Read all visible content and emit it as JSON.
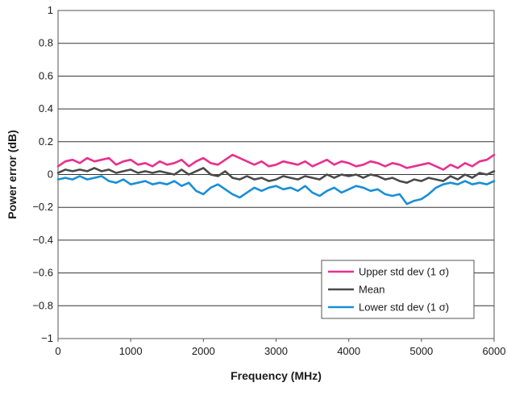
{
  "chart_data": {
    "type": "line",
    "xlabel": "Frequency (MHz)",
    "ylabel": "Power error (dB)",
    "xlim": [
      0,
      6000
    ],
    "ylim": [
      -1,
      1
    ],
    "x_ticks": [
      0,
      1000,
      2000,
      3000,
      4000,
      5000,
      6000
    ],
    "x_tick_labels": [
      "0",
      "1000",
      "2000",
      "3000",
      "4000",
      "5000",
      "6000"
    ],
    "y_ticks": [
      1,
      0.8,
      0.6,
      0.4,
      0.2,
      0,
      -0.2,
      -0.4,
      -0.6,
      -0.8,
      -1
    ],
    "y_tick_labels": [
      "1",
      "0.8",
      "0.6",
      "0.4",
      "0.2",
      "0",
      "−0.2",
      "−0.4",
      "−0.6",
      "−0.8",
      "−1"
    ],
    "grid": "horizontal",
    "legend_position": "bottom-right",
    "series": [
      {
        "name": "Upper std dev (1 σ)",
        "color": "#e8308f",
        "x": [
          0,
          100,
          200,
          300,
          400,
          500,
          600,
          700,
          800,
          900,
          1000,
          1100,
          1200,
          1300,
          1400,
          1500,
          1600,
          1700,
          1800,
          1900,
          2000,
          2100,
          2200,
          2300,
          2400,
          2500,
          2600,
          2700,
          2800,
          2900,
          3000,
          3100,
          3200,
          3300,
          3400,
          3500,
          3600,
          3700,
          3800,
          3900,
          4000,
          4100,
          4200,
          4300,
          4400,
          4500,
          4600,
          4700,
          4800,
          4900,
          5000,
          5100,
          5200,
          5300,
          5400,
          5500,
          5600,
          5700,
          5800,
          5900,
          6000
        ],
        "y": [
          0.05,
          0.08,
          0.09,
          0.07,
          0.1,
          0.08,
          0.09,
          0.1,
          0.06,
          0.08,
          0.09,
          0.06,
          0.07,
          0.05,
          0.08,
          0.06,
          0.07,
          0.09,
          0.05,
          0.08,
          0.1,
          0.07,
          0.06,
          0.09,
          0.12,
          0.1,
          0.08,
          0.06,
          0.08,
          0.05,
          0.06,
          0.08,
          0.07,
          0.06,
          0.08,
          0.05,
          0.07,
          0.09,
          0.06,
          0.08,
          0.07,
          0.05,
          0.06,
          0.08,
          0.07,
          0.05,
          0.07,
          0.06,
          0.04,
          0.05,
          0.06,
          0.07,
          0.05,
          0.03,
          0.06,
          0.04,
          0.07,
          0.05,
          0.08,
          0.09,
          0.12
        ]
      },
      {
        "name": "Mean",
        "color": "#4a4a4a",
        "x": [
          0,
          100,
          200,
          300,
          400,
          500,
          600,
          700,
          800,
          900,
          1000,
          1100,
          1200,
          1300,
          1400,
          1500,
          1600,
          1700,
          1800,
          1900,
          2000,
          2100,
          2200,
          2300,
          2400,
          2500,
          2600,
          2700,
          2800,
          2900,
          3000,
          3100,
          3200,
          3300,
          3400,
          3500,
          3600,
          3700,
          3800,
          3900,
          4000,
          4100,
          4200,
          4300,
          4400,
          4500,
          4600,
          4700,
          4800,
          4900,
          5000,
          5100,
          5200,
          5300,
          5400,
          5500,
          5600,
          5700,
          5800,
          5900,
          6000
        ],
        "y": [
          0.01,
          0.03,
          0.02,
          0.03,
          0.02,
          0.04,
          0.02,
          0.03,
          0.01,
          0.02,
          0.03,
          0.01,
          0.02,
          0.01,
          0.02,
          0.01,
          0.0,
          0.03,
          0.0,
          0.02,
          0.04,
          0.0,
          -0.01,
          0.02,
          -0.02,
          -0.03,
          -0.01,
          -0.03,
          -0.02,
          -0.04,
          -0.03,
          -0.01,
          -0.02,
          -0.03,
          -0.01,
          -0.02,
          -0.03,
          0.0,
          -0.02,
          0.0,
          -0.01,
          0.0,
          -0.02,
          0.0,
          -0.01,
          -0.03,
          -0.02,
          -0.04,
          -0.05,
          -0.03,
          -0.04,
          -0.02,
          -0.03,
          -0.04,
          -0.01,
          -0.03,
          0.0,
          -0.02,
          0.01,
          0.0,
          0.02
        ]
      },
      {
        "name": "Lower std dev (1 σ)",
        "color": "#1a8fd6",
        "x": [
          0,
          100,
          200,
          300,
          400,
          500,
          600,
          700,
          800,
          900,
          1000,
          1100,
          1200,
          1300,
          1400,
          1500,
          1600,
          1700,
          1800,
          1900,
          2000,
          2100,
          2200,
          2300,
          2400,
          2500,
          2600,
          2700,
          2800,
          2900,
          3000,
          3100,
          3200,
          3300,
          3400,
          3500,
          3600,
          3700,
          3800,
          3900,
          4000,
          4100,
          4200,
          4300,
          4400,
          4500,
          4600,
          4700,
          4800,
          4900,
          5000,
          5100,
          5200,
          5300,
          5400,
          5500,
          5600,
          5700,
          5800,
          5900,
          6000
        ],
        "y": [
          -0.03,
          -0.02,
          -0.03,
          -0.01,
          -0.03,
          -0.02,
          -0.01,
          -0.04,
          -0.05,
          -0.03,
          -0.06,
          -0.05,
          -0.04,
          -0.06,
          -0.05,
          -0.06,
          -0.04,
          -0.07,
          -0.05,
          -0.1,
          -0.12,
          -0.08,
          -0.06,
          -0.09,
          -0.12,
          -0.14,
          -0.11,
          -0.08,
          -0.1,
          -0.08,
          -0.07,
          -0.09,
          -0.08,
          -0.1,
          -0.07,
          -0.11,
          -0.13,
          -0.1,
          -0.08,
          -0.11,
          -0.09,
          -0.07,
          -0.08,
          -0.1,
          -0.09,
          -0.12,
          -0.13,
          -0.12,
          -0.18,
          -0.16,
          -0.15,
          -0.12,
          -0.08,
          -0.06,
          -0.05,
          -0.06,
          -0.04,
          -0.06,
          -0.05,
          -0.06,
          -0.04
        ]
      }
    ]
  }
}
